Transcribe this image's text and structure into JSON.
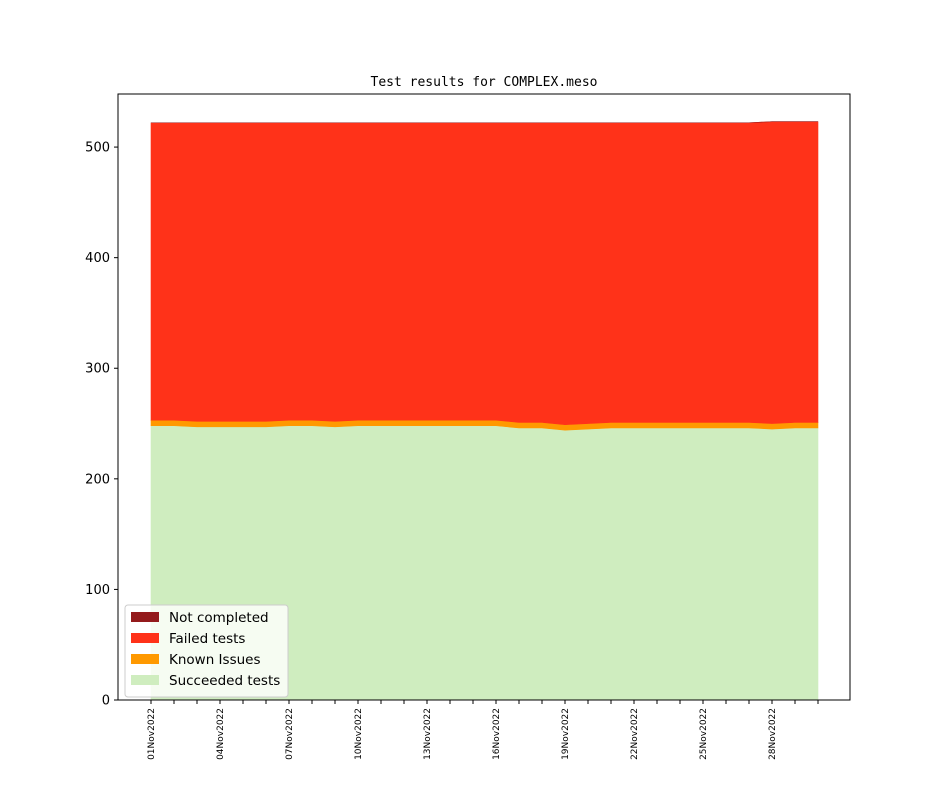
{
  "chart_data": {
    "type": "area",
    "stacked": true,
    "title": "Test results for COMPLEX.meso",
    "xlabel": "",
    "ylabel": "",
    "ylim": [
      0,
      548
    ],
    "yticks": [
      0,
      100,
      200,
      300,
      400,
      500
    ],
    "x": [
      "01Nov2022",
      "02Nov2022",
      "03Nov2022",
      "04Nov2022",
      "05Nov2022",
      "06Nov2022",
      "07Nov2022",
      "08Nov2022",
      "09Nov2022",
      "10Nov2022",
      "11Nov2022",
      "12Nov2022",
      "13Nov2022",
      "14Nov2022",
      "15Nov2022",
      "16Nov2022",
      "17Nov2022",
      "18Nov2022",
      "19Nov2022",
      "20Nov2022",
      "21Nov2022",
      "22Nov2022",
      "23Nov2022",
      "24Nov2022",
      "25Nov2022",
      "26Nov2022",
      "27Nov2022",
      "28Nov2022",
      "29Nov2022",
      "30Nov2022"
    ],
    "xtick_labels": [
      "01Nov2022",
      "04Nov2022",
      "07Nov2022",
      "10Nov2022",
      "13Nov2022",
      "16Nov2022",
      "19Nov2022",
      "22Nov2022",
      "25Nov2022",
      "28Nov2022"
    ],
    "series": [
      {
        "name": "Succeeded tests",
        "color": "#cfedbf",
        "values": [
          248,
          248,
          247,
          247,
          247,
          247,
          248,
          248,
          247,
          248,
          248,
          248,
          248,
          248,
          248,
          248,
          246,
          246,
          244,
          245,
          246,
          246,
          246,
          246,
          246,
          246,
          246,
          245,
          246,
          246
        ]
      },
      {
        "name": "Known Issues",
        "color": "#ff9900",
        "values": [
          5,
          5,
          5,
          5,
          5,
          5,
          5,
          5,
          5,
          5,
          5,
          5,
          5,
          5,
          5,
          5,
          5,
          5,
          5,
          5,
          5,
          5,
          5,
          5,
          5,
          5,
          5,
          5,
          5,
          5
        ]
      },
      {
        "name": "Failed tests",
        "color": "#ff3219",
        "values": [
          269,
          269,
          270,
          270,
          270,
          270,
          269,
          269,
          270,
          269,
          269,
          269,
          269,
          269,
          269,
          269,
          271,
          271,
          273,
          272,
          271,
          271,
          271,
          271,
          271,
          271,
          271,
          273,
          272,
          272
        ]
      },
      {
        "name": "Not completed",
        "color": "#941a1c",
        "values": [
          0,
          0,
          0,
          0,
          0,
          0,
          0,
          0,
          0,
          0,
          0,
          0,
          0,
          0,
          0,
          0,
          0,
          0,
          0,
          0,
          0,
          0,
          0,
          0,
          0,
          0,
          0,
          0,
          0,
          0
        ]
      }
    ],
    "legend": {
      "placement": "lower-left",
      "entries": [
        "Not completed",
        "Failed tests",
        "Known Issues",
        "Succeeded tests"
      ]
    },
    "grid": false
  }
}
